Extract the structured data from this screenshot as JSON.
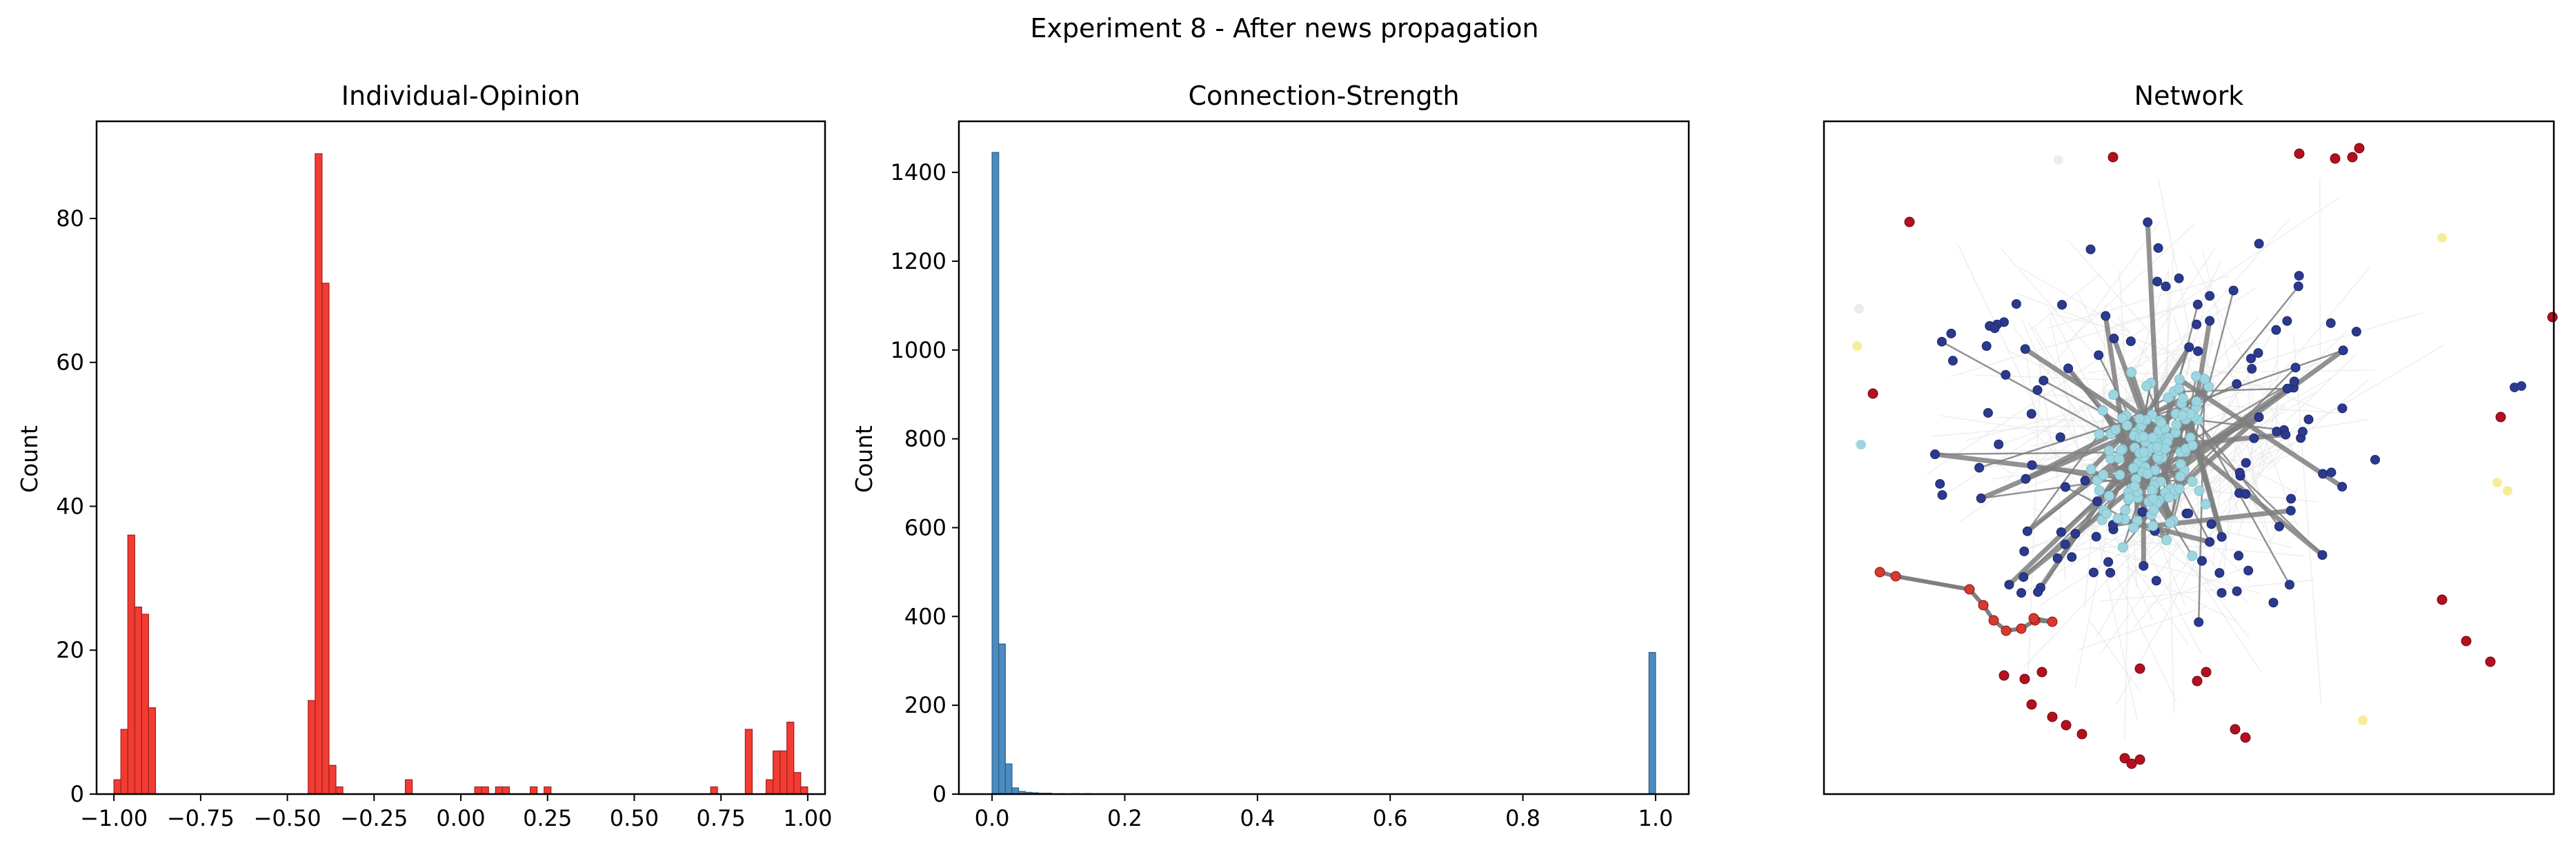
{
  "figure": {
    "suptitle": "Experiment 8 - After news propagation"
  },
  "chart_data": [
    {
      "type": "bar",
      "title": "Individual-Opinion",
      "xlabel": "",
      "ylabel": "Count",
      "xlim": [
        -1.05,
        1.05
      ],
      "ylim": [
        0,
        93.5
      ],
      "bin_width": 0.02,
      "xticks": [
        -1.0,
        -0.75,
        -0.5,
        -0.25,
        0.0,
        0.25,
        0.5,
        0.75,
        1.0
      ],
      "xtick_labels": [
        "−1.00",
        "−0.75",
        "−0.50",
        "−0.25",
        "0.00",
        "0.25",
        "0.50",
        "0.75",
        "1.00"
      ],
      "yticks": [
        0,
        20,
        40,
        60,
        80
      ],
      "ytick_labels": [
        "0",
        "20",
        "40",
        "60",
        "80"
      ],
      "color": "#f23c32",
      "edge_color": "#9e2020",
      "bins": [
        {
          "x": -0.99,
          "count": 2
        },
        {
          "x": -0.97,
          "count": 9
        },
        {
          "x": -0.95,
          "count": 36
        },
        {
          "x": -0.93,
          "count": 26
        },
        {
          "x": -0.91,
          "count": 25
        },
        {
          "x": -0.89,
          "count": 12
        },
        {
          "x": -0.43,
          "count": 13
        },
        {
          "x": -0.41,
          "count": 89
        },
        {
          "x": -0.39,
          "count": 71
        },
        {
          "x": -0.37,
          "count": 4
        },
        {
          "x": -0.35,
          "count": 1
        },
        {
          "x": -0.15,
          "count": 2
        },
        {
          "x": 0.05,
          "count": 1
        },
        {
          "x": 0.07,
          "count": 1
        },
        {
          "x": 0.11,
          "count": 1
        },
        {
          "x": 0.13,
          "count": 1
        },
        {
          "x": 0.21,
          "count": 1
        },
        {
          "x": 0.25,
          "count": 1
        },
        {
          "x": 0.73,
          "count": 1
        },
        {
          "x": 0.83,
          "count": 9
        },
        {
          "x": 0.89,
          "count": 2
        },
        {
          "x": 0.91,
          "count": 6
        },
        {
          "x": 0.93,
          "count": 6
        },
        {
          "x": 0.95,
          "count": 10
        },
        {
          "x": 0.97,
          "count": 3
        },
        {
          "x": 0.99,
          "count": 1
        }
      ]
    },
    {
      "type": "bar",
      "title": "Connection-Strength",
      "xlabel": "",
      "ylabel": "Count",
      "xlim": [
        -0.05,
        1.05
      ],
      "ylim": [
        0,
        1515
      ],
      "bin_width": 0.01,
      "xticks": [
        0.0,
        0.2,
        0.4,
        0.6,
        0.8,
        1.0
      ],
      "xtick_labels": [
        "0.0",
        "0.2",
        "0.4",
        "0.6",
        "0.8",
        "1.0"
      ],
      "yticks": [
        0,
        200,
        400,
        600,
        800,
        1000,
        1200,
        1400
      ],
      "ytick_labels": [
        "0",
        "200",
        "400",
        "600",
        "800",
        "1000",
        "1200",
        "1400"
      ],
      "color": "#4a8bc0",
      "edge_color": "#2e5f85",
      "bins": [
        {
          "x": 0.005,
          "count": 1445
        },
        {
          "x": 0.015,
          "count": 338
        },
        {
          "x": 0.025,
          "count": 68
        },
        {
          "x": 0.035,
          "count": 14
        },
        {
          "x": 0.045,
          "count": 6
        },
        {
          "x": 0.055,
          "count": 4
        },
        {
          "x": 0.065,
          "count": 3
        },
        {
          "x": 0.075,
          "count": 2
        },
        {
          "x": 0.085,
          "count": 2
        },
        {
          "x": 0.105,
          "count": 1
        },
        {
          "x": 0.125,
          "count": 1
        },
        {
          "x": 0.145,
          "count": 1
        },
        {
          "x": 0.995,
          "count": 319
        }
      ]
    }
  ],
  "network": {
    "title": "Network",
    "node_colors": {
      "dark_blue": "#2b3a8f",
      "light_blue": "#9dd6e0",
      "dark_red": "#b3101f",
      "red": "#d63a2e",
      "yellow": "#f6e98a",
      "pale": "#e8eef0"
    },
    "edge_color": "#7f7f7f"
  }
}
